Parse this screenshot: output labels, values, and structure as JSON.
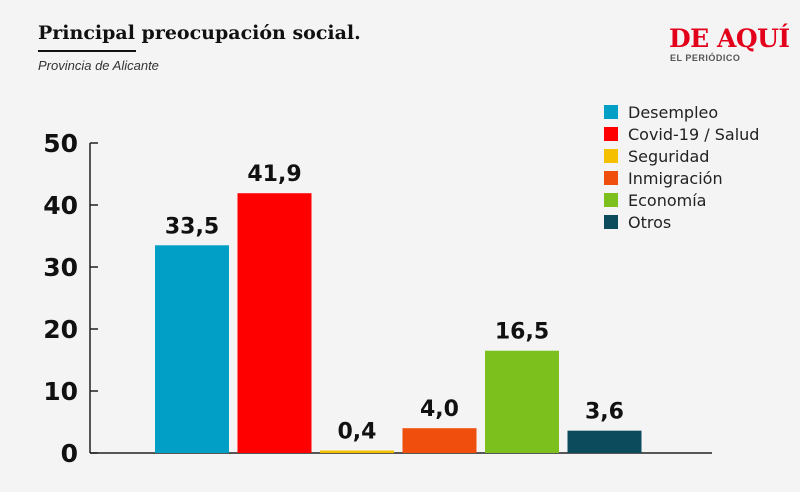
{
  "title": "Principal preocupación social.",
  "subtitle": "Provincia de Alicante",
  "brand": {
    "name": "DE AQUÍ",
    "tagline": "EL PERIÓDICO"
  },
  "chart_data": {
    "type": "bar",
    "title": "Principal preocupación social.",
    "subtitle": "Provincia de Alicante",
    "xlabel": "",
    "ylabel": "",
    "ylim": [
      0,
      50
    ],
    "yticks": [
      "0",
      "10",
      "20",
      "30",
      "40",
      "50"
    ],
    "grid": false,
    "legend_position": "top-right",
    "categories": [
      "Desempleo",
      "Covid-19 / Salud",
      "Seguridad",
      "Inmigración",
      "Economía",
      "Otros"
    ],
    "values": [
      33.5,
      41.9,
      0.4,
      4.0,
      16.5,
      3.6
    ],
    "value_labels": [
      "33,5",
      "41,9",
      "0,4",
      "4,0",
      "16,5",
      "3,6"
    ],
    "colors": [
      "#019fc6",
      "#ff0000",
      "#f5c000",
      "#f04e0c",
      "#7cc01e",
      "#0b4b5c"
    ]
  }
}
